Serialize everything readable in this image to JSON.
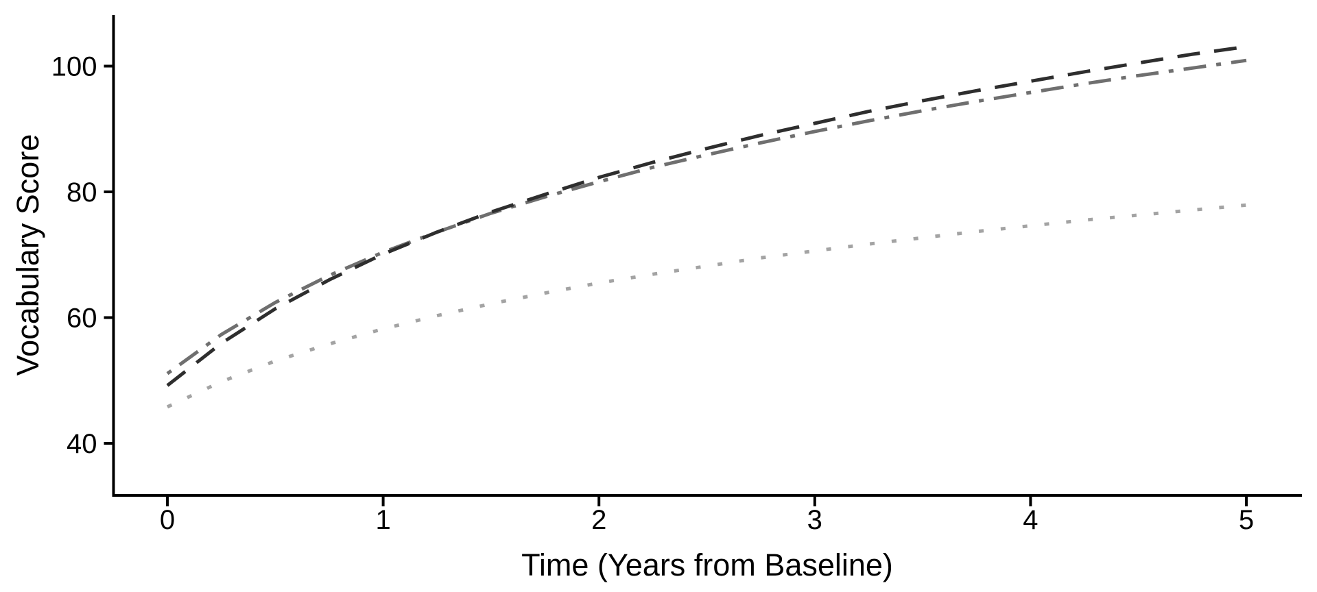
{
  "figure": {
    "background": "#ffffff",
    "axis_color": "#000000",
    "text_color": "#000000"
  },
  "chart_data": {
    "type": "line",
    "title": "",
    "xlabel": "Time (Years from Baseline)",
    "ylabel": "Vocabulary Score",
    "x_ticks": [
      0,
      1,
      2,
      3,
      4,
      5
    ],
    "y_ticks": [
      40,
      60,
      80,
      100
    ],
    "xlim": [
      -0.25,
      5.26
    ],
    "ylim": [
      31.7,
      108.1
    ],
    "grid": false,
    "legend": "none",
    "x": [
      0,
      0.25,
      0.5,
      0.75,
      1,
      1.25,
      1.5,
      1.75,
      2,
      2.25,
      2.5,
      2.75,
      3,
      3.25,
      3.5,
      3.75,
      4,
      4.25,
      4.5,
      4.75,
      5
    ],
    "series": [
      {
        "name": "dotted-light-gray-line",
        "linetype": "dotted",
        "color": "#a3a3a3",
        "values": [
          45.8,
          49.8,
          53.1,
          55.8,
          58.2,
          60.3,
          62.2,
          63.9,
          65.5,
          66.9,
          68.2,
          69.5,
          70.6,
          71.7,
          72.7,
          73.7,
          74.6,
          75.5,
          76.3,
          77.1,
          77.9
        ]
      },
      {
        "name": "dot-dash-gray-line",
        "linetype": "dotdash",
        "color": "#6f6f6f",
        "values": [
          51.1,
          57.3,
          62.4,
          66.7,
          70.4,
          73.6,
          76.6,
          79.2,
          81.6,
          83.9,
          85.9,
          87.8,
          89.6,
          91.3,
          92.9,
          94.4,
          95.8,
          97.2,
          98.5,
          99.7,
          100.9
        ]
      },
      {
        "name": "dashed-dark-line",
        "linetype": "dashed",
        "color": "#2e2e2e",
        "values": [
          49.2,
          55.9,
          61.4,
          66.0,
          70.1,
          73.6,
          76.8,
          79.6,
          82.3,
          84.7,
          86.9,
          89.0,
          90.9,
          92.8,
          94.5,
          96.1,
          97.6,
          99.1,
          100.5,
          101.9,
          103.1
        ]
      }
    ]
  }
}
